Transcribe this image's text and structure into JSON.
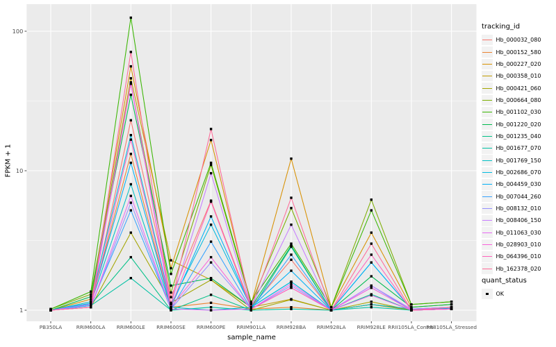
{
  "chart_data": {
    "type": "line",
    "title": "",
    "xlabel": "sample_name",
    "ylabel": "FPKM + 1",
    "y_scale": "log10",
    "ylim": [
      0.83,
      158
    ],
    "y_ticks": [
      1,
      10,
      100
    ],
    "y_tick_labels": [
      "1",
      "10",
      "100"
    ],
    "y_minor_ticks": [
      3.162,
      31.62
    ],
    "grid": true,
    "legend_position": "right",
    "legend_title": "tracking_id",
    "quant_legend": {
      "title": "quant_status",
      "items": [
        {
          "label": "OK",
          "shape": "black-square"
        }
      ]
    },
    "colors": {
      "panel_bg": "#EBEBEB",
      "grid": "#FFFFFF",
      "point": "#000000",
      "tick_text": "#4D4D4D",
      "axis_text": "#000000",
      "legend_key_bg": "#F2F2F2"
    },
    "categories": [
      "PB350LA",
      "RRIM600LA",
      "RRIM600LE",
      "RRIM600SE",
      "RRIM600PE",
      "RRIM901LA",
      "RRIM928BA",
      "RRIM928LA",
      "RRIM928LE",
      "RRII105LA_Control",
      "RRII105LA_Stressed"
    ],
    "series": [
      {
        "name": "Hb_000032_080",
        "color": "#F8766D",
        "values": [
          1.0,
          1.05,
          23.0,
          1.24,
          6.1,
          1.05,
          2.3,
          1.0,
          1.1,
          1.0,
          1.05
        ]
      },
      {
        "name": "Hb_000152_580",
        "color": "#EA8331",
        "values": [
          1.0,
          1.1,
          13.2,
          1.05,
          1.13,
          1.02,
          1.05,
          1.0,
          1.1,
          1.02,
          1.02
        ]
      },
      {
        "name": "Hb_000227_020",
        "color": "#D89000",
        "values": [
          1.0,
          1.2,
          56.0,
          2.0,
          16.6,
          1.1,
          12.2,
          1.05,
          3.6,
          1.05,
          1.1
        ]
      },
      {
        "name": "Hb_000358_010",
        "color": "#C09B00",
        "values": [
          1.0,
          1.15,
          46.0,
          2.28,
          1.65,
          1.05,
          1.2,
          1.0,
          1.1,
          1.0,
          1.05
        ]
      },
      {
        "name": "Hb_000421_060",
        "color": "#A3A500",
        "values": [
          1.0,
          1.05,
          3.6,
          1.13,
          1.65,
          1.0,
          1.19,
          1.0,
          1.15,
          1.0,
          1.02
        ]
      },
      {
        "name": "Hb_000664_080",
        "color": "#7CAE00",
        "values": [
          1.02,
          1.3,
          42.0,
          1.34,
          11.0,
          1.12,
          5.4,
          1.05,
          6.2,
          1.1,
          1.15
        ]
      },
      {
        "name": "Hb_001102_030",
        "color": "#39B600",
        "values": [
          1.02,
          1.36,
          125.0,
          1.82,
          11.4,
          1.15,
          3.0,
          1.05,
          5.2,
          1.1,
          1.15
        ]
      },
      {
        "name": "Hb_001220_020",
        "color": "#00BB4E",
        "values": [
          1.0,
          1.25,
          35.0,
          1.5,
          1.7,
          1.05,
          2.9,
          1.0,
          1.75,
          1.05,
          1.1
        ]
      },
      {
        "name": "Hb_001235_040",
        "color": "#00C087",
        "values": [
          1.0,
          1.1,
          2.4,
          1.0,
          1.29,
          1.0,
          2.85,
          1.0,
          1.3,
          1.0,
          1.03
        ]
      },
      {
        "name": "Hb_001677_070",
        "color": "#00C1A3",
        "values": [
          1.0,
          1.08,
          1.7,
          1.0,
          1.05,
          1.0,
          1.02,
          1.0,
          1.05,
          1.0,
          1.02
        ]
      },
      {
        "name": "Hb_001769_150",
        "color": "#00BFC4",
        "values": [
          1.0,
          1.12,
          8.0,
          1.05,
          1.0,
          1.05,
          1.6,
          1.0,
          1.1,
          1.02,
          1.05
        ]
      },
      {
        "name": "Hb_002686_070",
        "color": "#00BAE0",
        "values": [
          1.0,
          1.15,
          18.0,
          1.1,
          4.1,
          1.05,
          1.6,
          1.0,
          2.2,
          1.02,
          1.05
        ]
      },
      {
        "name": "Hb_004459_030",
        "color": "#00B0F6",
        "values": [
          1.0,
          1.12,
          11.4,
          1.05,
          4.7,
          1.05,
          1.92,
          1.0,
          2.2,
          1.02,
          1.03
        ]
      },
      {
        "name": "Hb_007044_260",
        "color": "#35A2FF",
        "values": [
          1.0,
          1.08,
          5.2,
          1.02,
          3.1,
          1.02,
          2.5,
          1.0,
          1.5,
          1.0,
          1.02
        ]
      },
      {
        "name": "Hb_008132_010",
        "color": "#9590FF",
        "values": [
          1.0,
          1.05,
          5.9,
          1.02,
          2.2,
          1.02,
          1.5,
          1.0,
          1.45,
          1.0,
          1.02
        ]
      },
      {
        "name": "Hb_008406_150",
        "color": "#C77CFF",
        "values": [
          1.0,
          1.1,
          43.0,
          1.1,
          9.6,
          1.05,
          4.1,
          1.0,
          1.5,
          1.02,
          1.05
        ]
      },
      {
        "name": "Hb_011063_030",
        "color": "#E76BF3",
        "values": [
          1.0,
          1.05,
          6.6,
          1.02,
          1.0,
          1.02,
          1.55,
          1.0,
          1.28,
          1.0,
          1.02
        ]
      },
      {
        "name": "Hb_028903_010",
        "color": "#FA62DB",
        "values": [
          1.0,
          1.05,
          42.0,
          1.05,
          2.4,
          1.02,
          1.45,
          1.0,
          1.45,
          1.0,
          1.02
        ]
      },
      {
        "name": "Hb_064396_010",
        "color": "#FF62BC",
        "values": [
          1.0,
          1.05,
          16.7,
          1.05,
          6.0,
          1.02,
          1.45,
          1.0,
          2.5,
          1.0,
          1.02
        ]
      },
      {
        "name": "Hb_162378_020",
        "color": "#FF6A98",
        "values": [
          1.0,
          1.05,
          71.0,
          1.1,
          19.9,
          1.05,
          6.4,
          1.0,
          3.0,
          1.0,
          1.05
        ]
      }
    ]
  }
}
